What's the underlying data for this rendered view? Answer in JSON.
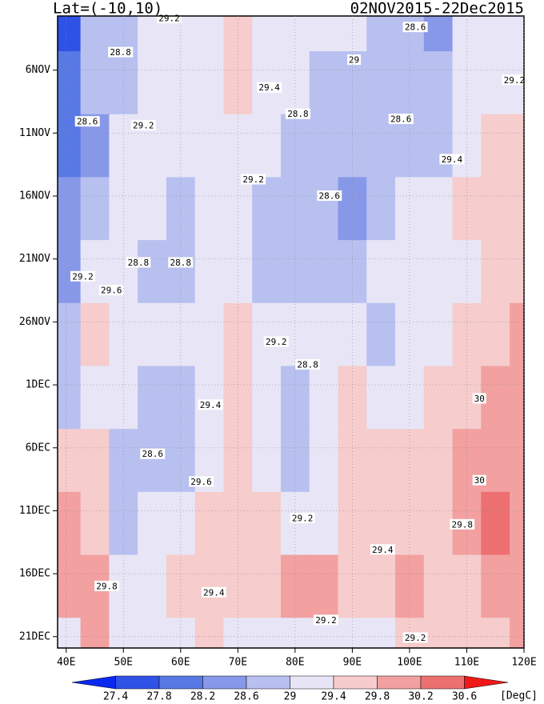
{
  "chart_data": {
    "type": "heatmap",
    "title": "Lat=(-10,10)",
    "subtitle": "02NOV2015-22Dec2015",
    "x": [
      40,
      45,
      50,
      55,
      60,
      65,
      70,
      75,
      80,
      85,
      90,
      95,
      100,
      105,
      110,
      115,
      120
    ],
    "y": [
      2,
      7,
      12,
      17,
      22,
      27,
      32,
      37,
      42,
      47,
      52
    ],
    "z": [
      [
        27.6,
        28.6,
        28.9,
        29.1,
        29.2,
        29.3,
        29.4,
        29.3,
        29.2,
        29.1,
        29.0,
        28.8,
        28.7,
        28.5,
        29.0,
        29.2,
        29.2
      ],
      [
        27.8,
        28.6,
        28.9,
        29.1,
        29.3,
        29.2,
        29.4,
        29.3,
        29.0,
        28.9,
        28.8,
        28.7,
        28.8,
        28.6,
        29.1,
        29.2,
        29.3
      ],
      [
        27.8,
        28.5,
        29.0,
        29.2,
        29.1,
        29.2,
        29.3,
        29.0,
        28.9,
        28.8,
        28.7,
        28.6,
        28.8,
        28.9,
        29.3,
        29.4,
        29.5
      ],
      [
        28.2,
        28.9,
        29.2,
        29.0,
        28.9,
        29.1,
        29.2,
        28.8,
        28.7,
        28.6,
        28.5,
        28.8,
        29.0,
        29.2,
        29.4,
        29.5,
        29.6
      ],
      [
        28.5,
        29.2,
        29.1,
        28.7,
        28.7,
        29.1,
        29.2,
        28.8,
        28.8,
        28.8,
        28.9,
        29.0,
        29.1,
        29.2,
        29.3,
        29.5,
        29.6
      ],
      [
        28.8,
        29.5,
        29.3,
        29.1,
        29.0,
        29.2,
        29.4,
        29.0,
        29.1,
        29.2,
        29.3,
        28.9,
        29.2,
        29.3,
        29.5,
        29.7,
        29.8
      ],
      [
        28.9,
        29.3,
        29.0,
        28.7,
        28.9,
        29.2,
        29.4,
        29.2,
        28.8,
        29.2,
        29.5,
        29.3,
        29.3,
        29.4,
        29.7,
        29.9,
        30.0
      ],
      [
        29.5,
        29.6,
        28.8,
        28.6,
        28.9,
        29.3,
        29.6,
        29.2,
        28.8,
        29.3,
        29.4,
        29.5,
        29.4,
        29.6,
        29.8,
        30.1,
        30.1
      ],
      [
        29.9,
        29.6,
        28.9,
        29.0,
        29.3,
        29.6,
        29.5,
        29.4,
        29.1,
        29.3,
        29.4,
        29.5,
        29.6,
        29.5,
        29.9,
        30.2,
        29.9
      ],
      [
        29.8,
        29.9,
        29.0,
        29.1,
        29.4,
        29.7,
        29.4,
        29.6,
        29.8,
        30.1,
        29.4,
        29.5,
        29.8,
        29.6,
        29.7,
        30.0,
        29.8
      ],
      [
        29.2,
        29.8,
        29.0,
        29.1,
        29.2,
        29.4,
        29.2,
        29.1,
        29.2,
        29.3,
        29.2,
        29.3,
        29.5,
        29.4,
        29.6,
        29.7,
        29.8
      ]
    ],
    "xlim": [
      38.5,
      120
    ],
    "ylim": [
      1.7,
      51.9
    ],
    "xticks": [
      {
        "value": 40,
        "label": "40E"
      },
      {
        "value": 50,
        "label": "50E"
      },
      {
        "value": 60,
        "label": "60E"
      },
      {
        "value": 70,
        "label": "70E"
      },
      {
        "value": 80,
        "label": "80E"
      },
      {
        "value": 90,
        "label": "90E"
      },
      {
        "value": 100,
        "label": "100E"
      },
      {
        "value": 110,
        "label": "110E"
      },
      {
        "value": 120,
        "label": "120E"
      }
    ],
    "yticks": [
      {
        "value": 6,
        "label": "6NOV"
      },
      {
        "value": 11,
        "label": "11NOV"
      },
      {
        "value": 16,
        "label": "16NOV"
      },
      {
        "value": 21,
        "label": "21NOV"
      },
      {
        "value": 26,
        "label": "26NOV"
      },
      {
        "value": 31,
        "label": "1DEC"
      },
      {
        "value": 36,
        "label": "6DEC"
      },
      {
        "value": 41,
        "label": "11DEC"
      },
      {
        "value": 46,
        "label": "16DEC"
      },
      {
        "value": 51,
        "label": "21DEC"
      }
    ],
    "levels": [
      27.4,
      27.8,
      28.2,
      28.6,
      29,
      29.4,
      29.8,
      30.2,
      30.6
    ],
    "colors": [
      "#0a28f0",
      "#2f52e6",
      "#5878e4",
      "#8898e8",
      "#b8c0f0",
      "#e8e6f6",
      "#f6cccc",
      "#f2a0a0",
      "#ec7070",
      "#f01818"
    ],
    "unit": "[DegC]",
    "contour_labels": [
      {
        "x": 58,
        "y": 1.9,
        "value": 29.2
      },
      {
        "x": 49.5,
        "y": 4.6,
        "value": 28.8
      },
      {
        "x": 75.5,
        "y": 7.4,
        "value": 29.4
      },
      {
        "x": 90.3,
        "y": 5.2,
        "value": 29
      },
      {
        "x": 101,
        "y": 2.6,
        "value": 28.6
      },
      {
        "x": 118.3,
        "y": 6.8,
        "value": 29.2
      },
      {
        "x": 43.7,
        "y": 10.1,
        "value": 28.6
      },
      {
        "x": 53.5,
        "y": 10.4,
        "value": 29.2
      },
      {
        "x": 80.5,
        "y": 9.5,
        "value": 28.8
      },
      {
        "x": 98.5,
        "y": 9.9,
        "value": 28.6
      },
      {
        "x": 107.4,
        "y": 13.1,
        "value": 29.4
      },
      {
        "x": 72.7,
        "y": 14.7,
        "value": 29.2
      },
      {
        "x": 86,
        "y": 16,
        "value": 28.6
      },
      {
        "x": 52.6,
        "y": 21.3,
        "value": 28.8
      },
      {
        "x": 60,
        "y": 21.3,
        "value": 28.8
      },
      {
        "x": 42.9,
        "y": 22.4,
        "value": 29.2
      },
      {
        "x": 47.9,
        "y": 23.5,
        "value": 29.6
      },
      {
        "x": 76.7,
        "y": 27.6,
        "value": 29.2
      },
      {
        "x": 82.2,
        "y": 29.4,
        "value": 28.8
      },
      {
        "x": 65.2,
        "y": 32.6,
        "value": 29.4
      },
      {
        "x": 112.2,
        "y": 32.1,
        "value": 30
      },
      {
        "x": 55.1,
        "y": 36.5,
        "value": 28.6
      },
      {
        "x": 63.6,
        "y": 38.7,
        "value": 29.6
      },
      {
        "x": 112.2,
        "y": 38.6,
        "value": 30
      },
      {
        "x": 81.3,
        "y": 41.6,
        "value": 29.2
      },
      {
        "x": 109.2,
        "y": 42.1,
        "value": 29.8
      },
      {
        "x": 95.3,
        "y": 44.1,
        "value": 29.4
      },
      {
        "x": 47.1,
        "y": 47,
        "value": 29.8
      },
      {
        "x": 65.8,
        "y": 47.5,
        "value": 29.4
      },
      {
        "x": 85.4,
        "y": 49.7,
        "value": 29.2
      },
      {
        "x": 101,
        "y": 51.1,
        "value": 29.2
      }
    ]
  }
}
